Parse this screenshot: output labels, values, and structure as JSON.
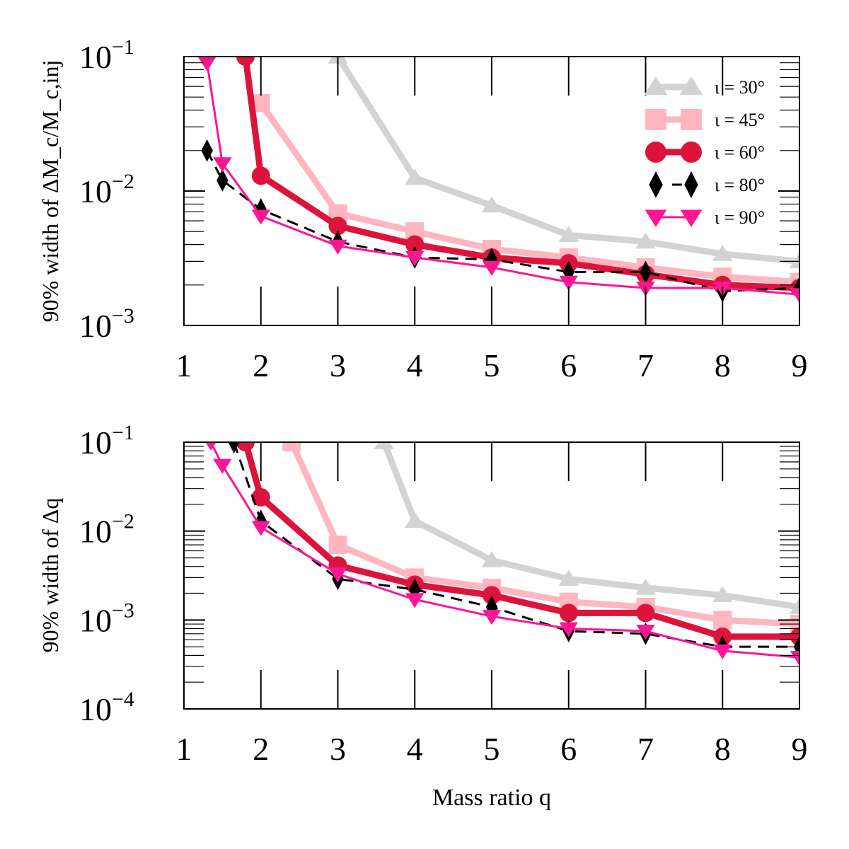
{
  "chart_data": [
    {
      "type": "line",
      "title": "",
      "ylabel": "90% width of ΔM_c/M_c,inj",
      "xlabel": "",
      "xlim": [
        1,
        9
      ],
      "ylim": [
        0.001,
        0.1
      ],
      "yscale": "log",
      "xticks": [
        "1",
        "2",
        "3",
        "4",
        "5",
        "6",
        "7",
        "8",
        "9"
      ],
      "yticks": [
        {
          "base": "10",
          "exp": "−3"
        },
        {
          "base": "10",
          "exp": "−2"
        },
        {
          "base": "10",
          "exp": "−1"
        }
      ],
      "legend_position": "top-right",
      "series": [
        {
          "name": "ι = 30°",
          "color": "#d3d3d3",
          "marker": "triangle-up",
          "line": "solid-thick",
          "x": [
            3,
            4,
            5,
            6,
            7,
            8,
            9
          ],
          "y": [
            0.1,
            0.0125,
            0.0078,
            0.0047,
            0.0042,
            0.0034,
            0.003
          ]
        },
        {
          "name": "ι = 45°",
          "color": "#ffb6c1",
          "marker": "square",
          "line": "solid-thick",
          "x": [
            2,
            3,
            4,
            5,
            6,
            7,
            8,
            9
          ],
          "y": [
            0.045,
            0.0068,
            0.005,
            0.0037,
            0.0032,
            0.0027,
            0.0023,
            0.0021
          ]
        },
        {
          "name": "ι = 60°",
          "color": "#dc143c",
          "marker": "circle",
          "line": "solid-thick",
          "x": [
            1.8,
            2,
            3,
            4,
            5,
            6,
            7,
            8,
            9
          ],
          "y": [
            0.1,
            0.013,
            0.0055,
            0.004,
            0.0032,
            0.0029,
            0.0024,
            0.002,
            0.0019
          ]
        },
        {
          "name": "ι = 80°",
          "color": "#000000",
          "marker": "diamond",
          "line": "dashed",
          "x": [
            1.3,
            1.5,
            2,
            3,
            4,
            5,
            6,
            7,
            8,
            9
          ],
          "y": [
            0.02,
            0.012,
            0.0073,
            0.0042,
            0.0032,
            0.0031,
            0.0025,
            0.0025,
            0.0018,
            0.0019
          ]
        },
        {
          "name": "ι = 90°",
          "color": "#ff1493",
          "marker": "triangle-down",
          "line": "solid-thin",
          "x": [
            1.3,
            1.5,
            2,
            3,
            4,
            5,
            6,
            7,
            8,
            9
          ],
          "y": [
            0.09,
            0.016,
            0.0065,
            0.0039,
            0.0032,
            0.0027,
            0.0021,
            0.0019,
            0.0019,
            0.0017
          ]
        }
      ]
    },
    {
      "type": "line",
      "title": "",
      "ylabel": "90% width of Δq",
      "xlabel": "Mass ratio q",
      "xlim": [
        1,
        9
      ],
      "ylim": [
        0.0001,
        0.1
      ],
      "yscale": "log",
      "xticks": [
        "1",
        "2",
        "3",
        "4",
        "5",
        "6",
        "7",
        "8",
        "9"
      ],
      "yticks": [
        {
          "base": "10",
          "exp": "−4"
        },
        {
          "base": "10",
          "exp": "−3"
        },
        {
          "base": "10",
          "exp": "−2"
        },
        {
          "base": "10",
          "exp": "−1"
        }
      ],
      "series": [
        {
          "name": "ι = 30°",
          "color": "#d3d3d3",
          "marker": "triangle-up",
          "line": "solid-thick",
          "x": [
            3.6,
            4,
            5,
            6,
            7,
            8,
            9
          ],
          "y": [
            0.1,
            0.013,
            0.0047,
            0.0029,
            0.0023,
            0.0019,
            0.0014
          ]
        },
        {
          "name": "ι = 45°",
          "color": "#ffb6c1",
          "marker": "square",
          "line": "solid-thick",
          "x": [
            2.4,
            3,
            4,
            5,
            6,
            7,
            8,
            9
          ],
          "y": [
            0.1,
            0.007,
            0.003,
            0.0023,
            0.0016,
            0.0014,
            0.001,
            0.0009
          ]
        },
        {
          "name": "ι = 60°",
          "color": "#dc143c",
          "marker": "circle",
          "line": "solid-thick",
          "x": [
            1.8,
            2,
            3,
            4,
            5,
            6,
            7,
            8,
            9
          ],
          "y": [
            0.1,
            0.024,
            0.0041,
            0.0025,
            0.0019,
            0.0012,
            0.0012,
            0.00065,
            0.00065
          ]
        },
        {
          "name": "ι = 80°",
          "color": "#000000",
          "marker": "diamond",
          "line": "dashed",
          "x": [
            1.65,
            2,
            3,
            4,
            5,
            6,
            7,
            8,
            9
          ],
          "y": [
            0.1,
            0.013,
            0.0029,
            0.0022,
            0.0014,
            0.00075,
            0.0007,
            0.0005,
            0.0005
          ]
        },
        {
          "name": "ι = 90°",
          "color": "#ff1493",
          "marker": "triangle-down",
          "line": "solid-thin",
          "x": [
            1.35,
            1.5,
            2,
            3,
            4,
            5,
            6,
            7,
            8,
            9
          ],
          "y": [
            0.1,
            0.055,
            0.011,
            0.0033,
            0.0017,
            0.0011,
            0.0008,
            0.00075,
            0.00045,
            0.00038
          ]
        }
      ]
    }
  ]
}
